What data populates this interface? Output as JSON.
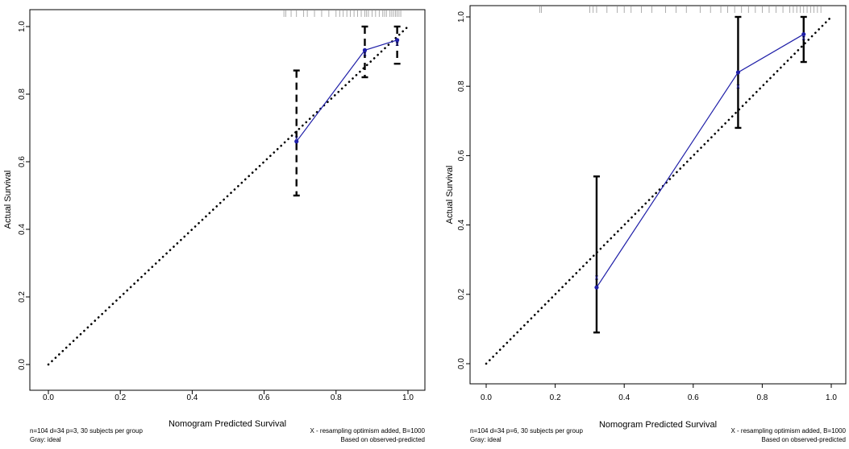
{
  "chart_data": [
    {
      "type": "line",
      "title": "",
      "xlabel": "Nomogram Predicted Survival",
      "ylabel": "Actual Survival",
      "xlim": [
        0.0,
        1.0
      ],
      "ylim": [
        0.0,
        1.0
      ],
      "x_ticks": [
        "0.0",
        "0.2",
        "0.4",
        "0.6",
        "0.8",
        "1.0"
      ],
      "y_ticks": [
        "0.0",
        "0.2",
        "0.4",
        "0.6",
        "0.8",
        "1.0"
      ],
      "grid": false,
      "ideal_line": {
        "x": [
          0,
          1
        ],
        "y": [
          0,
          1
        ],
        "style": "dotted",
        "color": "#000000"
      },
      "series": [
        {
          "x": [
            0.69,
            0.88,
            0.97
          ],
          "y": [
            0.66,
            0.93,
            0.96
          ],
          "color": "#1f1fa8",
          "ci_low": [
            0.5,
            0.85,
            0.89
          ],
          "ci_high": [
            0.87,
            1.0,
            1.0
          ],
          "ci_style": "dashed"
        }
      ],
      "corrected": {
        "x": [
          0.69,
          0.88,
          0.97
        ],
        "y": [
          0.67,
          0.92,
          0.95
        ]
      },
      "rug": [
        0.655,
        0.66,
        0.675,
        0.69,
        0.71,
        0.72,
        0.74,
        0.76,
        0.78,
        0.8,
        0.81,
        0.82,
        0.83,
        0.84,
        0.85,
        0.86,
        0.87,
        0.88,
        0.885,
        0.89,
        0.9,
        0.91,
        0.92,
        0.93,
        0.935,
        0.94,
        0.95,
        0.955,
        0.96,
        0.965,
        0.97,
        0.975,
        0.98
      ],
      "note_left_1": "n=104 d=34 p=3, 30 subjects per group",
      "note_left_2": "Gray: ideal",
      "note_right_1": "X - resampling optimism added, B=1000",
      "note_right_2": "Based on observed-predicted"
    },
    {
      "type": "line",
      "title": "",
      "xlabel": "Nomogram Predicted Survival",
      "ylabel": "Actual Survival",
      "xlim": [
        0.0,
        1.0
      ],
      "ylim": [
        0.0,
        1.0
      ],
      "x_ticks": [
        "0.0",
        "0.2",
        "0.4",
        "0.6",
        "0.8",
        "1.0"
      ],
      "y_ticks": [
        "0.0",
        "0.2",
        "0.4",
        "0.6",
        "0.8",
        "1.0"
      ],
      "grid": false,
      "ideal_line": {
        "x": [
          0,
          1
        ],
        "y": [
          0,
          1
        ],
        "style": "dotted",
        "color": "#000000"
      },
      "series": [
        {
          "x": [
            0.32,
            0.73,
            0.92
          ],
          "y": [
            0.22,
            0.84,
            0.95
          ],
          "color": "#1f1fa8",
          "ci_low": [
            0.09,
            0.68,
            0.87
          ],
          "ci_high": [
            0.54,
            1.0,
            1.0
          ],
          "ci_style": "solid"
        }
      ],
      "corrected": {
        "x": [
          0.32,
          0.73,
          0.92
        ],
        "y": [
          0.25,
          0.8,
          0.94
        ]
      },
      "rug": [
        0.155,
        0.16,
        0.3,
        0.31,
        0.32,
        0.35,
        0.38,
        0.4,
        0.42,
        0.45,
        0.48,
        0.52,
        0.55,
        0.58,
        0.62,
        0.65,
        0.68,
        0.7,
        0.72,
        0.74,
        0.76,
        0.78,
        0.8,
        0.82,
        0.84,
        0.86,
        0.88,
        0.89,
        0.9,
        0.91,
        0.92,
        0.93,
        0.94,
        0.95,
        0.96,
        0.97
      ],
      "note_left_1": "n=104 d=34 p=6, 30 subjects per group",
      "note_left_2": "Gray: ideal",
      "note_right_1": "X - resampling optimism added, B=1000",
      "note_right_2": "Based on observed-predicted"
    }
  ]
}
